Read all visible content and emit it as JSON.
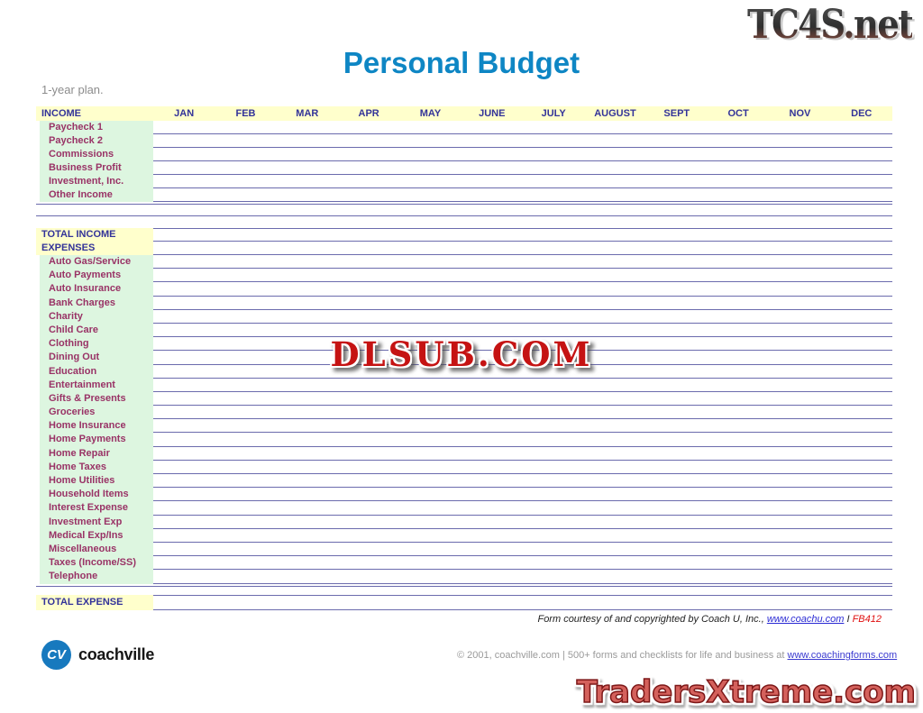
{
  "watermarks": {
    "tc4s": "TC4S.net",
    "dlsub": "DLSUB.COM",
    "tradersxtreme": "TradersXtreme.com"
  },
  "page": {
    "title": "Personal Budget",
    "subtitle": "1-year plan."
  },
  "table": {
    "income_header": "INCOME",
    "months": [
      "JAN",
      "FEB",
      "MAR",
      "APR",
      "MAY",
      "JUNE",
      "JULY",
      "AUGUST",
      "SEPT",
      "OCT",
      "NOV",
      "DEC"
    ],
    "income_rows": [
      "Paycheck 1",
      "Paycheck 2",
      "Commissions",
      "Business Profit",
      "Investment, Inc.",
      "Other Income"
    ],
    "total_income_label": "TOTAL INCOME",
    "expenses_header": "EXPENSES",
    "expense_rows": [
      "Auto Gas/Service",
      "Auto Payments",
      "Auto Insurance",
      "Bank Charges",
      "Charity",
      "Child Care",
      "Clothing",
      "Dining Out",
      "Education",
      "Entertainment",
      "Gifts & Presents",
      "Groceries",
      "Home Insurance",
      "Home Payments",
      "Home Repair",
      "Home Taxes",
      "Home Utilities",
      "Household Items",
      "Interest Expense",
      "Investment Exp",
      "Medical Exp/Ins",
      "Miscellaneous",
      "Taxes (Income/SS)",
      "Telephone"
    ],
    "total_expense_label": "TOTAL EXPENSE"
  },
  "footer": {
    "courtesy_text": "Form courtesy of and copyrighted by Coach U, Inc., ",
    "coachu_link": "www.coachu.com",
    "separator": " I ",
    "form_id": "FB412",
    "brand_initials": "CV",
    "brand_name": "coachville",
    "copyright_text": "© 2001, coachville.com | 500+ forms and checklists for life and business at ",
    "coachingforms_link": "www.coachingforms.com"
  },
  "colors": {
    "header_band": "#FFFFCC",
    "label_band": "#DDF6E0",
    "item_text": "#993366",
    "heading_text": "#333399",
    "rule_line": "#6B6BAD",
    "title_blue": "#0E86C4",
    "watermark_red": "#C51313"
  }
}
